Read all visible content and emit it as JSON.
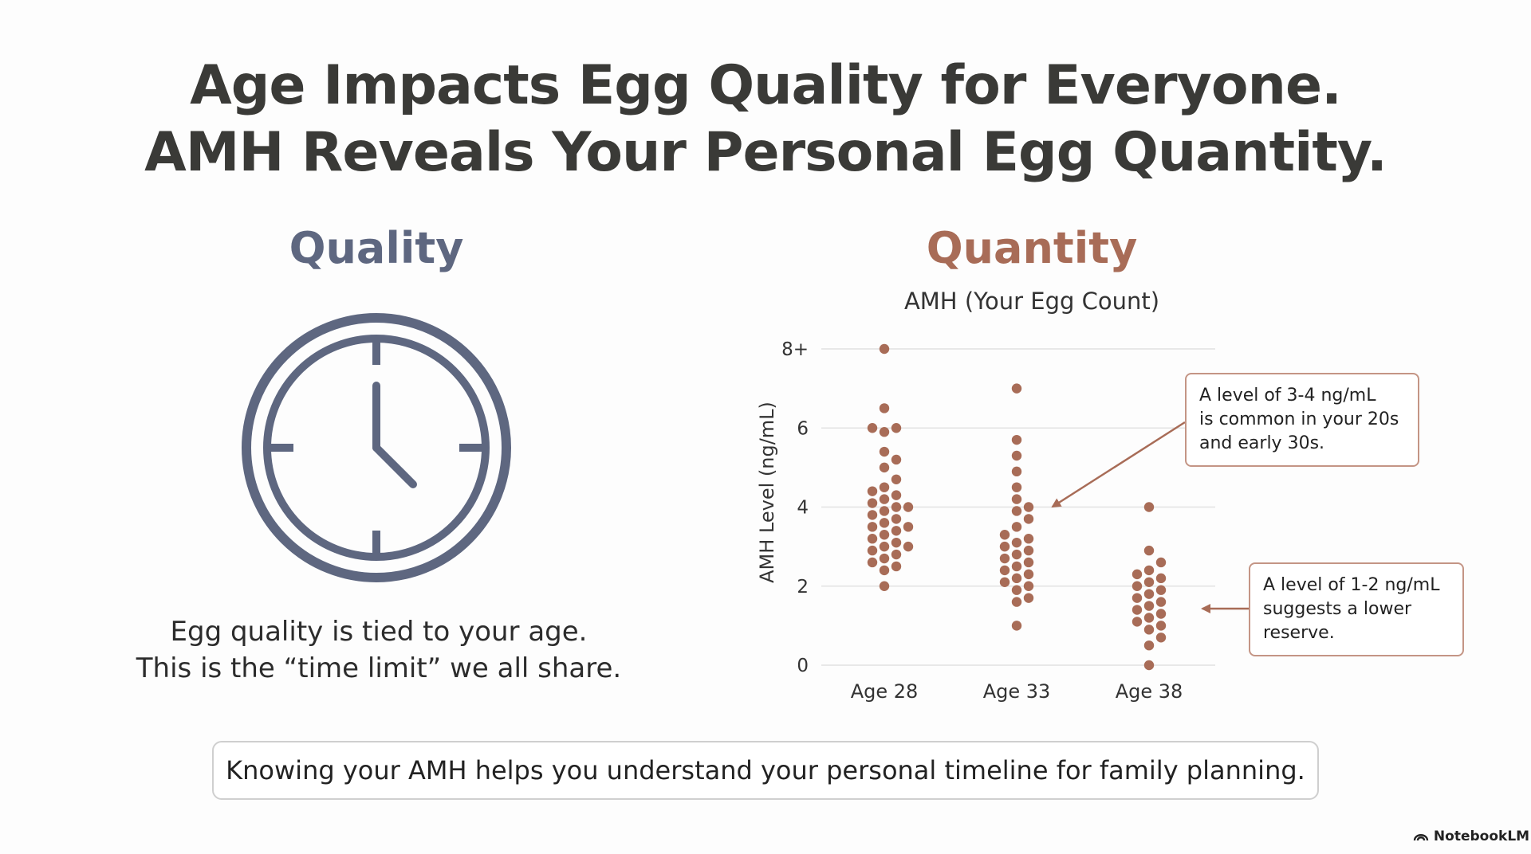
{
  "title": {
    "line1": "Age Impacts Egg Quality for Everyone.",
    "line2": "AMH Reveals Your Personal Egg Quantity."
  },
  "quality": {
    "heading": "Quality",
    "text_line1": "Egg quality is tied to your age.",
    "text_line2": "This is the “time limit” we all share.",
    "icon": "clock-icon",
    "color": "#5e6780"
  },
  "quantity": {
    "heading": "Quantity",
    "color": "#a86c57"
  },
  "chart_data": {
    "type": "scatter",
    "title": "AMH (Your Egg Count)",
    "ylabel": "AMH Level (ng/mL)",
    "xlabel": "",
    "ylim": [
      0,
      8
    ],
    "yticks": [
      "0",
      "2",
      "4",
      "6",
      "8+"
    ],
    "categories": [
      "Age 28",
      "Age 33",
      "Age 38"
    ],
    "grid": true,
    "dot_color": "#a86c57",
    "series": [
      {
        "values": [
          2.0,
          2.4,
          2.5,
          2.6,
          2.7,
          2.8,
          2.9,
          3.0,
          3.0,
          3.1,
          3.2,
          3.3,
          3.4,
          3.5,
          3.5,
          3.6,
          3.7,
          3.8,
          3.9,
          4.0,
          4.0,
          4.1,
          4.2,
          4.3,
          4.4,
          4.5,
          4.7,
          5.0,
          5.2,
          5.4,
          5.9,
          6.0,
          6.0,
          6.5,
          8.0
        ]
      },
      {
        "values": [
          1.0,
          1.6,
          1.7,
          1.9,
          2.0,
          2.1,
          2.2,
          2.3,
          2.4,
          2.5,
          2.6,
          2.7,
          2.8,
          2.9,
          3.0,
          3.1,
          3.2,
          3.3,
          3.5,
          3.7,
          3.9,
          4.0,
          4.2,
          4.5,
          4.9,
          5.3,
          5.7,
          7.0
        ]
      },
      {
        "values": [
          0.0,
          0.5,
          0.7,
          0.9,
          1.0,
          1.1,
          1.2,
          1.3,
          1.4,
          1.5,
          1.6,
          1.7,
          1.8,
          1.9,
          2.0,
          2.1,
          2.2,
          2.3,
          2.4,
          2.6,
          2.9,
          4.0
        ]
      }
    ],
    "annotations": [
      {
        "line1": "A level of 3-4 ng/mL",
        "line2": "is common in your 20s",
        "line3": "and early 30s.",
        "target": "Age 33",
        "target_value": 4.0
      },
      {
        "line1": "A level of 1-2 ng/mL",
        "line2": "suggests a lower",
        "line3": "reserve.",
        "target": "Age 38",
        "target_value": 1.4
      }
    ]
  },
  "footer": {
    "message": "Knowing your AMH helps you understand your personal timeline for family planning."
  },
  "brand": {
    "label": "NotebookLM",
    "icon": "notebooklm-logo-icon"
  }
}
